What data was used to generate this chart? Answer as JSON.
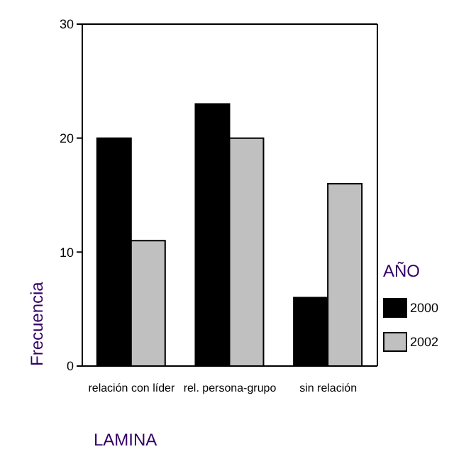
{
  "chart_data": {
    "type": "bar",
    "xlabel": "LAMINA",
    "ylabel": "Frecuencia",
    "legend_title": "AÑO",
    "categories": [
      "relación con líder",
      "rel. persona-grupo",
      "sin relación"
    ],
    "series": [
      {
        "name": "2000",
        "color": "#000000",
        "values": [
          20,
          23,
          6
        ]
      },
      {
        "name": "2002",
        "color": "#c0c0c0",
        "values": [
          11,
          20,
          16
        ]
      }
    ],
    "ylim": [
      0,
      30
    ],
    "yticks": [
      0,
      10,
      20,
      30
    ],
    "legend": "right",
    "grid": false
  }
}
